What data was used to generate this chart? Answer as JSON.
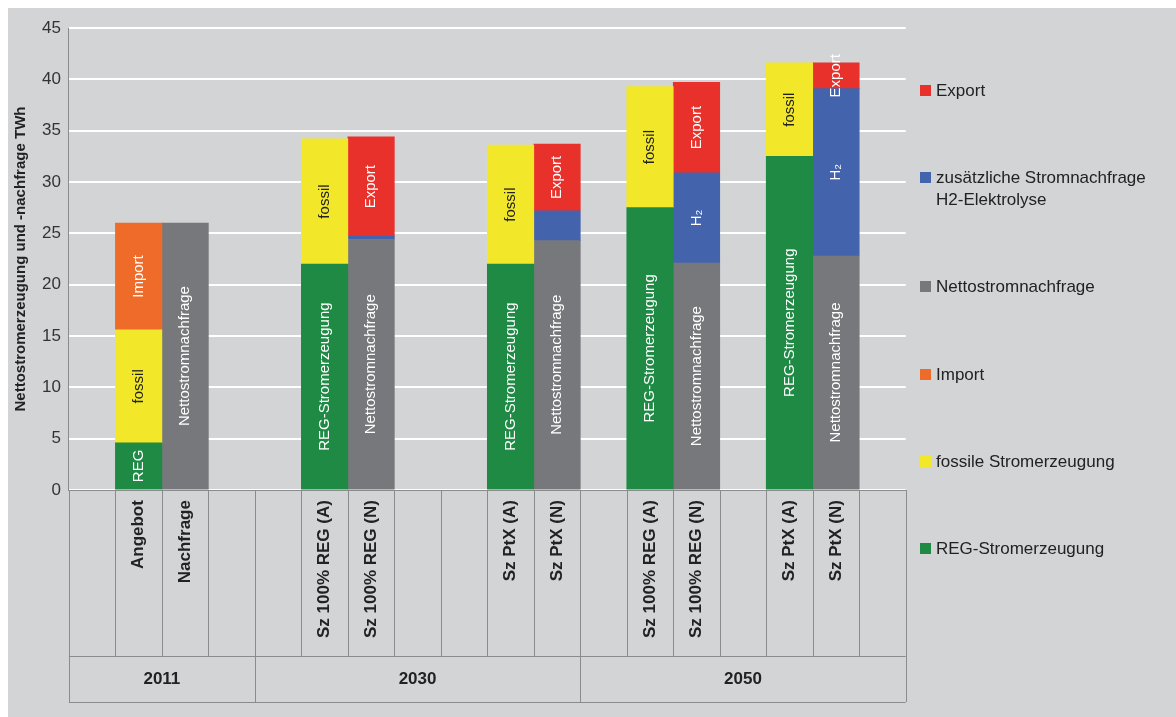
{
  "chart_data": {
    "type": "bar",
    "stacked": true,
    "ylabel": "Nettostromerzeugung und -nachfrage TWh",
    "categories": [
      null,
      "Angebot",
      "Nachfrage",
      null,
      null,
      "Sz 100% REG (A)",
      "Sz 100% REG (N)",
      null,
      null,
      "Sz PtX (A)",
      "Sz PtX (N)",
      null,
      "Sz 100% REG (A)",
      "Sz 100% REG (N)",
      null,
      "Sz PtX (A)",
      "Sz PtX (N)",
      null
    ],
    "series": [
      {
        "name": "REG-Stromerzeugung",
        "color": "#1e8a44",
        "values": [
          null,
          4.6,
          null,
          null,
          null,
          22.0,
          null,
          null,
          null,
          22.0,
          null,
          null,
          27.5,
          null,
          null,
          32.5,
          null,
          null
        ],
        "value_labels": [
          null,
          "REG",
          null,
          null,
          null,
          "REG-Stromerzeugung",
          null,
          null,
          null,
          "REG-Stromerzeugung",
          null,
          null,
          "REG-Stromerzeugung",
          null,
          null,
          "REG-Stromerzeugung",
          null,
          null
        ]
      },
      {
        "name": "fossile Stromerzeugung",
        "color": "#f2e829",
        "values": [
          null,
          11.0,
          null,
          null,
          null,
          12.2,
          null,
          null,
          null,
          11.6,
          null,
          null,
          11.8,
          null,
          null,
          9.1,
          null,
          null
        ],
        "value_labels": [
          null,
          "fossil",
          null,
          null,
          null,
          "fossil",
          null,
          null,
          null,
          "fossil",
          null,
          null,
          "fossil",
          null,
          null,
          "fossil",
          null,
          null
        ]
      },
      {
        "name": "Import",
        "color": "#ef6b2a",
        "values": [
          null,
          10.4,
          null,
          null,
          null,
          null,
          null,
          null,
          null,
          null,
          null,
          null,
          null,
          null,
          null,
          null,
          null,
          null
        ],
        "value_labels": [
          null,
          "Import",
          null,
          null,
          null,
          null,
          null,
          null,
          null,
          null,
          null,
          null,
          null,
          null,
          null,
          null,
          null,
          null
        ]
      },
      {
        "name": "Nettostromnachfrage",
        "color": "#77787b",
        "values": [
          null,
          null,
          26.0,
          null,
          null,
          null,
          24.4,
          null,
          null,
          null,
          24.3,
          null,
          null,
          22.1,
          null,
          null,
          22.8,
          null
        ],
        "value_labels": [
          null,
          null,
          "Nettostromnachfrage",
          null,
          null,
          null,
          "Nettostromnachfrage",
          null,
          null,
          null,
          "Nettostromnachfrage",
          null,
          null,
          "Nettostromnachfrage",
          null,
          null,
          "Nettostromnachfrage",
          null
        ]
      },
      {
        "name": "zusätzliche Stromnachfrage H2-Elektrolyse",
        "color": "#4463ad",
        "values": [
          null,
          null,
          null,
          null,
          null,
          null,
          0.3,
          null,
          null,
          null,
          2.9,
          null,
          null,
          8.8,
          null,
          null,
          16.3,
          null
        ],
        "value_labels": [
          null,
          null,
          null,
          null,
          null,
          null,
          null,
          null,
          null,
          null,
          null,
          null,
          null,
          "H₂",
          null,
          null,
          "H₂",
          null
        ]
      },
      {
        "name": "Export",
        "color": "#e8312a",
        "values": [
          null,
          null,
          null,
          null,
          null,
          null,
          9.7,
          null,
          null,
          null,
          6.5,
          null,
          null,
          8.8,
          null,
          null,
          2.5,
          null
        ],
        "value_labels": [
          null,
          null,
          null,
          null,
          null,
          null,
          "Export",
          null,
          null,
          null,
          "Export",
          null,
          null,
          "Export",
          null,
          null,
          "Export",
          null
        ]
      }
    ],
    "ylim": [
      0,
      45
    ],
    "yticks": [
      0,
      5,
      10,
      15,
      20,
      25,
      30,
      35,
      40,
      45
    ],
    "grid": "y",
    "legend": "right",
    "annotations": [
      "2011",
      "2030",
      "2050"
    ]
  }
}
